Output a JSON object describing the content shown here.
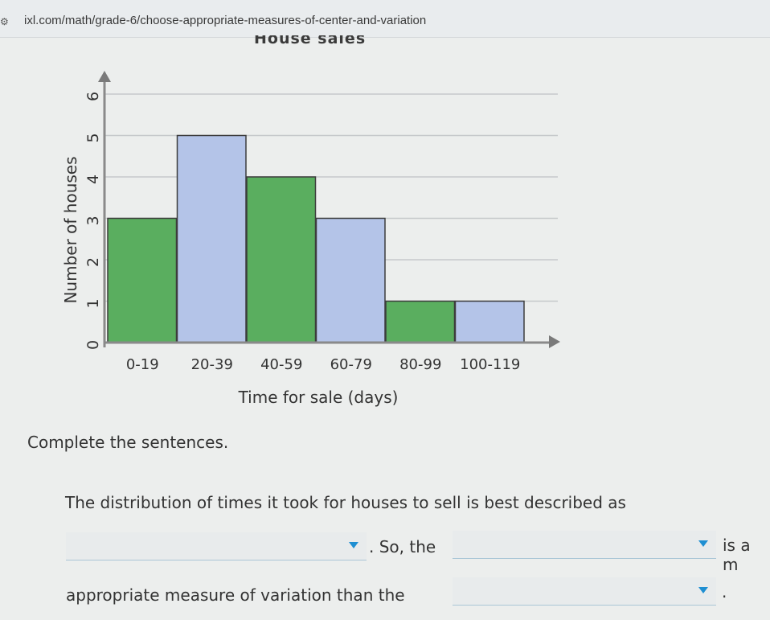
{
  "browser": {
    "site_icon": "site-settings-icon",
    "url": "ixl.com/math/grade-6/choose-appropriate-measures-of-center-and-variation"
  },
  "chart_data": {
    "type": "bar",
    "title": "House sales",
    "xlabel": "Time for sale (days)",
    "ylabel": "Number of houses",
    "categories": [
      "0-19",
      "20-39",
      "40-59",
      "60-79",
      "80-99",
      "100-119"
    ],
    "values": [
      3,
      5,
      4,
      3,
      1,
      1
    ],
    "ylim": [
      0,
      6
    ],
    "yticks": [
      0,
      1,
      2,
      3,
      4,
      5,
      6
    ],
    "grid": true,
    "colors": [
      "#5aae5f",
      "#b4c4e8",
      "#5aae5f",
      "#b4c4e8",
      "#5aae5f",
      "#b4c4e8"
    ]
  },
  "question": {
    "prompt": "Complete the sentences.",
    "line1": "The distribution of times it took for houses to sell is best described as",
    "line2_mid": ". So, the",
    "line2_end": "is a m",
    "line3_start": "appropriate measure of variation than the",
    "line3_end": "."
  },
  "dropdowns": {
    "distribution_selected": "",
    "measure1_selected": "",
    "measure2_selected": ""
  },
  "colors": {
    "accent": "#1f8fd2",
    "bar_green": "#5aae5f",
    "bar_blue": "#b4c4e8"
  }
}
